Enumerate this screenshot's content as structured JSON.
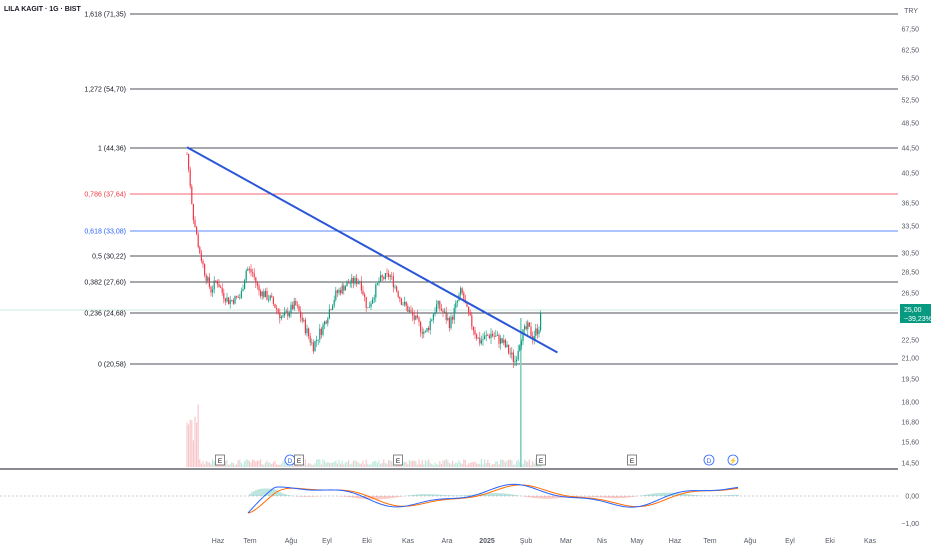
{
  "header": {
    "symbol": "LILA KAGIT · 1G · BIST",
    "currency": "TRY"
  },
  "chart_data": {
    "type": "candlestick",
    "title": "LILA KAGIT · 1G · BIST",
    "currency": "TRY",
    "price_axis_ticks": [
      "67,50",
      "62,50",
      "56,50",
      "52,50",
      "48,50",
      "44,50",
      "40,50",
      "36,50",
      "33,50",
      "30,50",
      "28,50",
      "26,50",
      "22,50",
      "21,00",
      "19,50",
      "18,00",
      "16,80",
      "15,60",
      "14,50"
    ],
    "time_axis_ticks": [
      "Haz",
      "Tem",
      "Ağu",
      "Eyl",
      "Eki",
      "Kas",
      "Ara",
      "2025",
      "Şub",
      "Mar",
      "Nis",
      "May",
      "Haz",
      "Tem",
      "Ağu",
      "Eyl",
      "Eki",
      "Kas"
    ],
    "fibonacci_levels": [
      {
        "label": "1,618 (71,35)",
        "value": 71.35,
        "color": "#131722"
      },
      {
        "label": "1,272 (54,70)",
        "value": 54.7,
        "color": "#131722"
      },
      {
        "label": "1 (44,36)",
        "value": 44.36,
        "color": "#131722"
      },
      {
        "label": "0,786 (37,64)",
        "value": 37.64,
        "color": "#f23645"
      },
      {
        "label": "0,618 (33,08)",
        "value": 33.08,
        "color": "#2962ff"
      },
      {
        "label": "0,5 (30,22)",
        "value": 30.22,
        "color": "#131722"
      },
      {
        "label": "0,382 (27,60)",
        "value": 27.6,
        "color": "#131722"
      },
      {
        "label": "0,236 (24,68)",
        "value": 24.68,
        "color": "#131722"
      },
      {
        "label": "0 (20,58)",
        "value": 20.58,
        "color": "#131722"
      }
    ],
    "trendline": {
      "from": {
        "date": "2024-05-27",
        "price": 44.5
      },
      "to": {
        "date": "2025-08-05",
        "price": 21.5
      },
      "color": "#2a56d8"
    },
    "last_price": {
      "value": "25,00",
      "change": "−39,23%",
      "color": "#089981"
    },
    "price_path": [
      {
        "date": "2024-05-27",
        "price": 43.5
      },
      {
        "date": "2024-06-03",
        "price": 35.0
      },
      {
        "date": "2024-06-10",
        "price": 31.0
      },
      {
        "date": "2024-06-17",
        "price": 28.5
      },
      {
        "date": "2024-06-24",
        "price": 26.8
      },
      {
        "date": "2024-07-01",
        "price": 27.8
      },
      {
        "date": "2024-07-08",
        "price": 26.5
      },
      {
        "date": "2024-07-15",
        "price": 25.8
      },
      {
        "date": "2024-07-29",
        "price": 26.2
      },
      {
        "date": "2024-08-05",
        "price": 29.0
      },
      {
        "date": "2024-08-12",
        "price": 28.5
      },
      {
        "date": "2024-08-19",
        "price": 26.8
      },
      {
        "date": "2024-09-02",
        "price": 26.0
      },
      {
        "date": "2024-09-16",
        "price": 24.2
      },
      {
        "date": "2024-10-01",
        "price": 25.5
      },
      {
        "date": "2024-10-14",
        "price": 23.3
      },
      {
        "date": "2024-10-22",
        "price": 22.0
      },
      {
        "date": "2024-11-04",
        "price": 23.8
      },
      {
        "date": "2024-11-18",
        "price": 26.5
      },
      {
        "date": "2024-12-02",
        "price": 27.5
      },
      {
        "date": "2024-12-16",
        "price": 27.8
      },
      {
        "date": "2024-12-25",
        "price": 25.0
      },
      {
        "date": "2025-01-08",
        "price": 27.8
      },
      {
        "date": "2025-01-20",
        "price": 28.3
      },
      {
        "date": "2025-02-03",
        "price": 25.8
      },
      {
        "date": "2025-02-17",
        "price": 24.3
      },
      {
        "date": "2025-03-03",
        "price": 23.0
      },
      {
        "date": "2025-03-17",
        "price": 25.5
      },
      {
        "date": "2025-04-01",
        "price": 23.8
      },
      {
        "date": "2025-04-14",
        "price": 26.8
      },
      {
        "date": "2025-04-22",
        "price": 24.5
      },
      {
        "date": "2025-05-05",
        "price": 22.4
      },
      {
        "date": "2025-05-19",
        "price": 23.0
      },
      {
        "date": "2025-06-02",
        "price": 22.3
      },
      {
        "date": "2025-06-16",
        "price": 20.8
      },
      {
        "date": "2025-06-23",
        "price": 22.8
      },
      {
        "date": "2025-07-01",
        "price": 23.5
      },
      {
        "date": "2025-07-07",
        "price": 22.8
      },
      {
        "date": "2025-07-14",
        "price": 23.5
      },
      {
        "date": "2025-07-18",
        "price": 25.0
      }
    ],
    "macd_axis_ticks": [
      "0,00",
      "−1,00"
    ],
    "event_markers": [
      "E",
      "D",
      "E",
      "E",
      "E",
      "E",
      "D",
      "⚡"
    ]
  }
}
